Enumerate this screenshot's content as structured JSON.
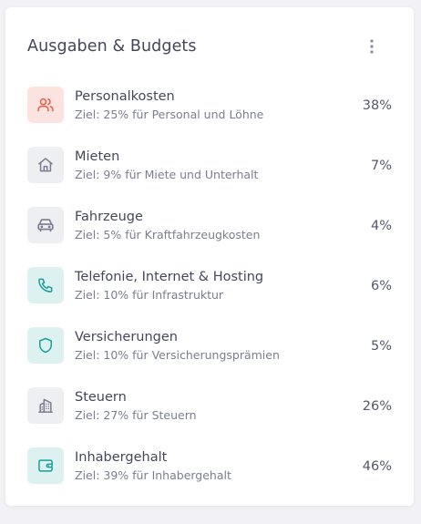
{
  "card": {
    "title": "Ausgaben & Budgets",
    "menu_icon": "more-vertical-icon"
  },
  "items": [
    {
      "title": "Personalkosten",
      "subtitle": "Ziel: 25% für Personal und Löhne",
      "percent": "38%",
      "icon": "users-icon",
      "icon_bg": "#fde3e0",
      "icon_color": "#ea5a3f"
    },
    {
      "title": "Mieten",
      "subtitle": "Ziel: 9% für Miete und Unterhalt",
      "percent": "7%",
      "icon": "home-icon",
      "icon_bg": "#eeeff3",
      "icon_color": "#7a7d8e"
    },
    {
      "title": "Fahrzeuge",
      "subtitle": "Ziel: 5% für Kraftfahrzeugkosten",
      "percent": "4%",
      "icon": "car-icon",
      "icon_bg": "#eeeff3",
      "icon_color": "#7a7d8e"
    },
    {
      "title": "Telefonie, Internet & Hosting",
      "subtitle": "Ziel: 10% für Infrastruktur",
      "percent": "6%",
      "icon": "phone-icon",
      "icon_bg": "#dcf1f0",
      "icon_color": "#1a9f9a"
    },
    {
      "title": "Versicherungen",
      "subtitle": "Ziel: 10% für Versicherungsprämien",
      "percent": "5%",
      "icon": "shield-icon",
      "icon_bg": "#dcf1f0",
      "icon_color": "#1a9f9a"
    },
    {
      "title": "Steuern",
      "subtitle": "Ziel: 27% für Steuern",
      "percent": "26%",
      "icon": "building-icon",
      "icon_bg": "#eeeff3",
      "icon_color": "#7a7d8e"
    },
    {
      "title": "Inhabergehalt",
      "subtitle": "Ziel: 39% für Inhabergehalt",
      "percent": "46%",
      "icon": "wallet-icon",
      "icon_bg": "#dcf1f0",
      "icon_color": "#1a9f9a"
    }
  ]
}
